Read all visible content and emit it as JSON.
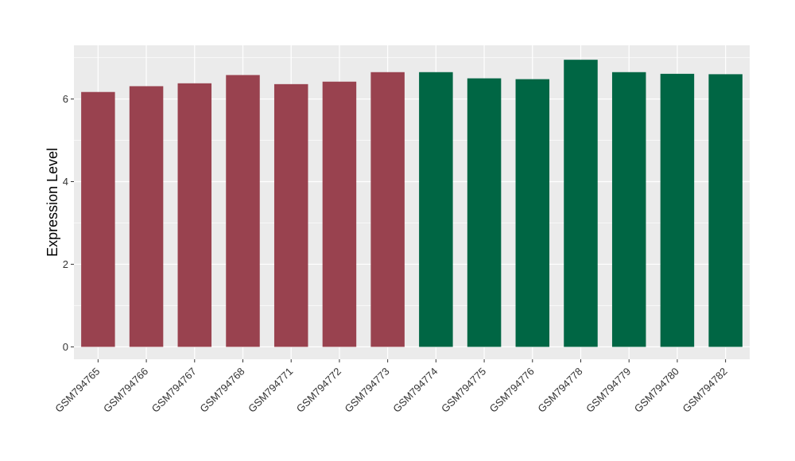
{
  "chart_data": {
    "type": "bar",
    "categories": [
      "GSM794765",
      "GSM794766",
      "GSM794767",
      "GSM794768",
      "GSM794771",
      "GSM794772",
      "GSM794773",
      "GSM794774",
      "GSM794775",
      "GSM794776",
      "GSM794778",
      "GSM794779",
      "GSM794780",
      "GSM794782"
    ],
    "values": [
      6.17,
      6.31,
      6.38,
      6.58,
      6.36,
      6.42,
      6.65,
      6.65,
      6.5,
      6.48,
      6.95,
      6.65,
      6.61,
      6.6
    ],
    "bar_colors": [
      "#99424f",
      "#99424f",
      "#99424f",
      "#99424f",
      "#99424f",
      "#99424f",
      "#99424f",
      "#006644",
      "#006644",
      "#006644",
      "#006644",
      "#006644",
      "#006644",
      "#006644"
    ],
    "title": "",
    "xlabel": "",
    "ylabel": "Expression Level",
    "ylim": [
      -0.3,
      7.3
    ],
    "yticks": [
      0,
      2,
      4,
      6
    ],
    "ytick_labels": [
      "0",
      "2",
      "4",
      "6"
    ],
    "grid": true,
    "panel_background": "#ebebeb",
    "grid_color": "#ffffff"
  }
}
